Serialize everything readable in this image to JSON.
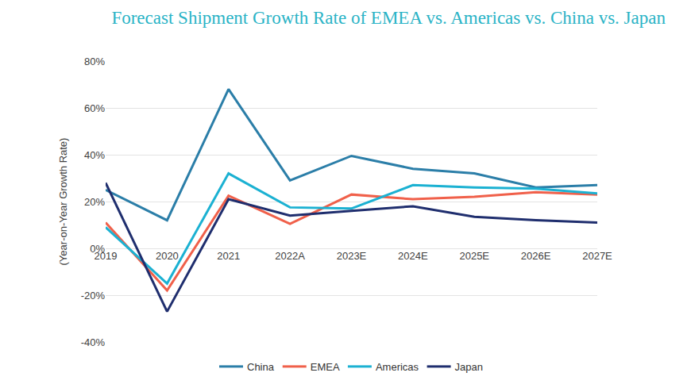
{
  "chart_data": {
    "type": "line",
    "title": "Forecast Shipment Growth Rate of EMEA vs. Americas vs. China vs. Japan",
    "y_label": "(Year-on-Year Growth Rate)",
    "categories": [
      "2019",
      "2020",
      "2021",
      "2022A",
      "2023E",
      "2024E",
      "2025E",
      "2026E",
      "2027E"
    ],
    "series": [
      {
        "name": "China",
        "color": "#2b7ea8",
        "values": [
          25,
          12,
          68,
          29,
          39.5,
          34,
          32,
          26,
          27
        ]
      },
      {
        "name": "EMEA",
        "color": "#f0604a",
        "values": [
          11,
          -18,
          22.5,
          10.5,
          23,
          21,
          22,
          24,
          23
        ]
      },
      {
        "name": "Americas",
        "color": "#1bb1d2",
        "values": [
          9,
          -15,
          32,
          17.5,
          17,
          27,
          26,
          25.5,
          23.5
        ]
      },
      {
        "name": "Japan",
        "color": "#1f2e6e",
        "values": [
          28,
          -27,
          21,
          14,
          16,
          18,
          13.5,
          12,
          11
        ]
      }
    ],
    "ylim": [
      -40,
      80
    ],
    "yticks": [
      {
        "value": -40,
        "label": "-40%"
      },
      {
        "value": -20,
        "label": "-20%"
      },
      {
        "value": 0,
        "label": "0%"
      },
      {
        "value": 20,
        "label": "20%"
      },
      {
        "value": 40,
        "label": "40%"
      },
      {
        "value": 60,
        "label": "60%"
      },
      {
        "value": 80,
        "label": "80%"
      }
    ],
    "grid": true,
    "legend": "bottom"
  }
}
